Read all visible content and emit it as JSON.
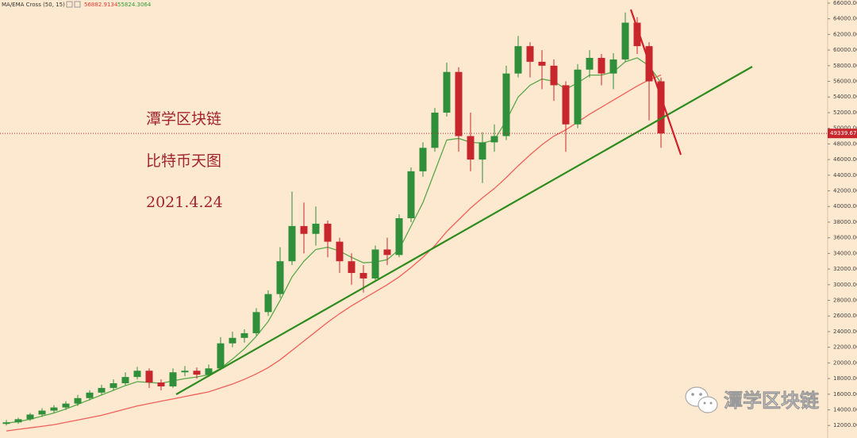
{
  "chart_data": {
    "type": "candlestick",
    "indicator": {
      "label": "MA/EMA Cross (50, 15)",
      "values": [
        56882.9134,
        55824.3064
      ],
      "colors": [
        "#e53935",
        "#2e9d3a"
      ]
    },
    "annotations": [
      "潭学区块链",
      "比特币天图",
      "2021.4.24"
    ],
    "watermark": "潭学区块链",
    "last_price": 49339.67,
    "up_color": "#2f8f3a",
    "down_color": "#c8262d",
    "open": [
      12200,
      12400,
      12800,
      13400,
      13900,
      14300,
      14800,
      15500,
      16200,
      16800,
      17400,
      18200,
      19000,
      17500,
      17000,
      18800,
      19000,
      18500,
      19300,
      22500,
      23200,
      23800,
      26500,
      28800,
      33000,
      37500,
      36500,
      37800,
      35500,
      33000,
      31500,
      30800,
      34500,
      33800,
      38500,
      44500,
      47500,
      52000,
      57200,
      49000,
      46000,
      48200,
      49000,
      57000,
      60500,
      58500,
      58000,
      55500,
      50500,
      57500,
      59000,
      57000,
      58800,
      63500,
      60500,
      56000
    ],
    "high": [
      12700,
      13000,
      13600,
      14200,
      14600,
      15100,
      15900,
      16500,
      17200,
      17900,
      18800,
      19500,
      19300,
      17900,
      19300,
      19600,
      19400,
      19800,
      23300,
      24000,
      24300,
      27000,
      29300,
      34800,
      41900,
      40500,
      40000,
      38200,
      36000,
      34000,
      32500,
      35000,
      36000,
      39000,
      45000,
      48200,
      52600,
      58400,
      57800,
      52000,
      49500,
      50500,
      58000,
      61800,
      61000,
      60000,
      58800,
      56000,
      58200,
      60000,
      59500,
      59600,
      64800,
      64200,
      61000,
      56500
    ],
    "low": [
      12000,
      12200,
      12600,
      13100,
      13600,
      14000,
      14500,
      15200,
      15900,
      16500,
      17100,
      17900,
      16800,
      16500,
      16800,
      18300,
      18000,
      18200,
      19100,
      22000,
      22600,
      23500,
      26000,
      28300,
      32500,
      34000,
      35000,
      33500,
      31500,
      30000,
      29000,
      30500,
      32500,
      33500,
      38000,
      43800,
      47000,
      51500,
      47000,
      44500,
      43000,
      47000,
      48500,
      56500,
      56500,
      55000,
      53500,
      47000,
      50000,
      56500,
      55500,
      55000,
      58500,
      59500,
      51000,
      47500
    ],
    "close": [
      12400,
      12800,
      13400,
      13900,
      14300,
      14800,
      15500,
      16200,
      16800,
      17400,
      18200,
      19000,
      17500,
      17000,
      18800,
      19000,
      18500,
      19300,
      22500,
      23200,
      23800,
      26500,
      28800,
      33000,
      37500,
      36500,
      37800,
      35500,
      33000,
      31500,
      30800,
      34500,
      33800,
      38500,
      44500,
      47500,
      52000,
      57200,
      49000,
      46000,
      48200,
      49000,
      57000,
      60500,
      58500,
      58000,
      55500,
      50500,
      57500,
      59000,
      57000,
      58800,
      63500,
      60500,
      56000,
      49340
    ],
    "series": [
      {
        "color": "#f0605a",
        "values": [
          11300,
          11500,
          11700,
          11900,
          12100,
          12400,
          12700,
          13000,
          13300,
          13700,
          14100,
          14500,
          14800,
          15100,
          15400,
          15700,
          16000,
          16300,
          16800,
          17300,
          17900,
          18600,
          19400,
          20400,
          21600,
          22800,
          24000,
          25200,
          26300,
          27300,
          28200,
          29100,
          30000,
          31000,
          32200,
          33500,
          35000,
          36800,
          38300,
          39800,
          41100,
          42300,
          43700,
          45200,
          46600,
          47900,
          49000,
          49800,
          50800,
          51800,
          52700,
          53600,
          54500,
          55400,
          56200,
          56800
        ]
      },
      {
        "color": "#5aa84a",
        "values": [
          12300,
          12500,
          12800,
          13200,
          13600,
          14100,
          14700,
          15300,
          15900,
          16500,
          17100,
          17600,
          17500,
          17400,
          17700,
          18000,
          18200,
          18500,
          19300,
          20500,
          21800,
          23400,
          25300,
          28000,
          31000,
          33000,
          34500,
          34800,
          34300,
          33500,
          32800,
          32900,
          33200,
          34500,
          37500,
          40500,
          44500,
          48500,
          48700,
          48200,
          48100,
          48500,
          51000,
          54000,
          55500,
          56300,
          56000,
          55000,
          55800,
          56800,
          56800,
          57200,
          58500,
          59000,
          58000,
          55800
        ]
      }
    ],
    "ylim": [
      10400,
      66400
    ],
    "yticks": [
      {
        "value": 12000,
        "label": "12000.00"
      },
      {
        "value": 14000,
        "label": "14000.00"
      },
      {
        "value": 16000,
        "label": "16000.00"
      },
      {
        "value": 18000,
        "label": "18000.00"
      },
      {
        "value": 20000,
        "label": "20000.00"
      },
      {
        "value": 22000,
        "label": "22000.00"
      },
      {
        "value": 24000,
        "label": "24000.00"
      },
      {
        "value": 26000,
        "label": "26000.00"
      },
      {
        "value": 28000,
        "label": "28000.00"
      },
      {
        "value": 30000,
        "label": "30000.00"
      },
      {
        "value": 32000,
        "label": "32000.00"
      },
      {
        "value": 34000,
        "label": "34000.00"
      },
      {
        "value": 36000,
        "label": "36000.00"
      },
      {
        "value": 38000,
        "label": "38000.00"
      },
      {
        "value": 40000,
        "label": "40000.00"
      },
      {
        "value": 42000,
        "label": "42000.00"
      },
      {
        "value": 44000,
        "label": "44000.00"
      },
      {
        "value": 46000,
        "label": "46000.00"
      },
      {
        "value": 48000,
        "label": "48000.00"
      },
      {
        "value": 50000,
        "label": "50000.00"
      },
      {
        "value": 52000,
        "label": "52000.00"
      },
      {
        "value": 54000,
        "label": "54000.00"
      },
      {
        "value": 56000,
        "label": "56000.00"
      },
      {
        "value": 58000,
        "label": "58000.00"
      },
      {
        "value": 60000,
        "label": "60000.00"
      },
      {
        "value": 62000,
        "label": "62000.00"
      },
      {
        "value": 64000,
        "label": "64000.00"
      },
      {
        "value": 66000,
        "label": "66000.00"
      }
    ]
  }
}
